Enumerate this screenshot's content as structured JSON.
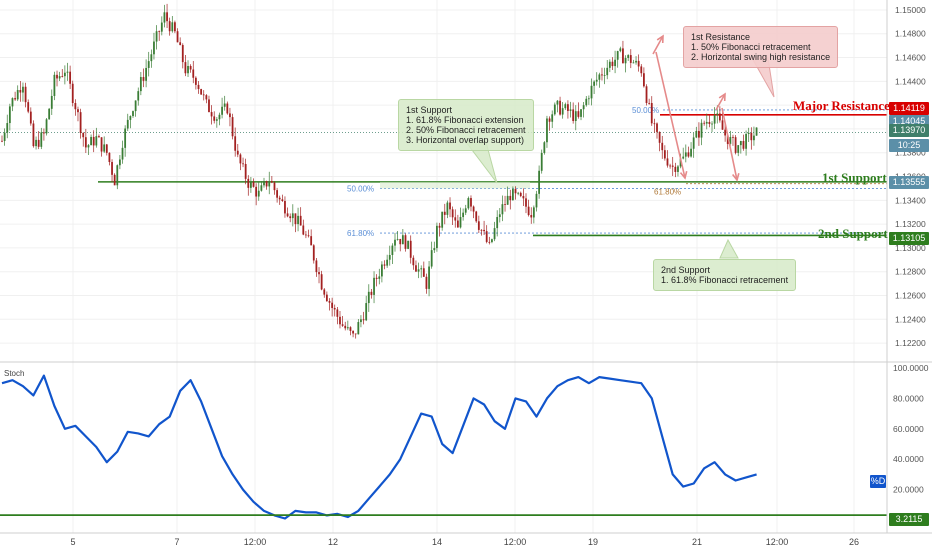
{
  "colors": {
    "candle_up": "#3a7d35",
    "candle_down": "#a32020",
    "support": "#2e7d1e",
    "resistance": "#d80000",
    "fib": "#5b8fd6",
    "fib_618_upper": "#b07a3a",
    "stoch_line": "#1155cc",
    "current_price": "#5b8fa8",
    "time_tag": "#5b8fa8",
    "grid": "#f0f0f0"
  },
  "price_axis": {
    "ticks": [
      "1.15000",
      "1.14800",
      "1.14600",
      "1.14400",
      "1.14200",
      "1.14000",
      "1.13800",
      "1.13600",
      "1.13400",
      "1.13200",
      "1.13000",
      "1.12800",
      "1.12600",
      "1.12400",
      "1.12200"
    ],
    "tags": {
      "major_resistance": "1.14119",
      "last_high": "1.14045",
      "current": "1.13970",
      "countdown": "10:25",
      "first_support": "1.13555",
      "second_support": "1.13105"
    }
  },
  "time_axis": {
    "ticks": [
      "5",
      "7",
      "12:00",
      "12",
      "14",
      "12:00",
      "19",
      "21",
      "12:00",
      "26"
    ]
  },
  "levels": {
    "major_resistance_label": "Major Resistance",
    "first_support_label": "1st Support",
    "second_support_label": "2nd Support"
  },
  "fib_labels": {
    "left_50": "50.00%",
    "left_618": "61.80%",
    "right_50": "50.00%",
    "right_618": "61.80%"
  },
  "annotations": {
    "first_support": [
      "1st Support",
      "1. 61.8% Fibonacci extension",
      "2. 50% Fibonacci retracement",
      "3. Horizontal overlap support)"
    ],
    "first_resistance": [
      "1st Resistance",
      "1. 50% Fibonacci retracement",
      "2. Horizontal swing high resistance"
    ],
    "second_support": [
      "2nd Support",
      "1. 61.8% Fibonacci retracement"
    ]
  },
  "stoch": {
    "name": "Stoch",
    "ticks": [
      "100.0000",
      "80.0000",
      "60.0000",
      "40.0000",
      "20.0000"
    ],
    "k_label": "%D",
    "level_value": "3.2115"
  },
  "chart_data": [
    {
      "type": "candlestick",
      "title": "",
      "ylim": [
        1.121,
        1.1505
      ],
      "x_ticks": [
        "5",
        "7",
        "12:00",
        "12",
        "14",
        "12:00",
        "19",
        "21",
        "12:00",
        "26"
      ],
      "close_path": [
        {
          "x": 0,
          "y": 1.139
        },
        {
          "x": 3,
          "y": 1.142
        },
        {
          "x": 8,
          "y": 1.144
        },
        {
          "x": 12,
          "y": 1.1385
        },
        {
          "x": 16,
          "y": 1.1395
        },
        {
          "x": 20,
          "y": 1.144
        },
        {
          "x": 24,
          "y": 1.145
        },
        {
          "x": 28,
          "y": 1.142
        },
        {
          "x": 32,
          "y": 1.1385
        },
        {
          "x": 36,
          "y": 1.1392
        },
        {
          "x": 40,
          "y": 1.138
        },
        {
          "x": 43,
          "y": 1.1357
        },
        {
          "x": 46,
          "y": 1.139
        },
        {
          "x": 50,
          "y": 1.142
        },
        {
          "x": 54,
          "y": 1.1445
        },
        {
          "x": 58,
          "y": 1.147
        },
        {
          "x": 62,
          "y": 1.1495
        },
        {
          "x": 66,
          "y": 1.148
        },
        {
          "x": 70,
          "y": 1.145
        },
        {
          "x": 74,
          "y": 1.1442
        },
        {
          "x": 78,
          "y": 1.142
        },
        {
          "x": 82,
          "y": 1.141
        },
        {
          "x": 86,
          "y": 1.1418
        },
        {
          "x": 90,
          "y": 1.1375
        },
        {
          "x": 94,
          "y": 1.1355
        },
        {
          "x": 98,
          "y": 1.1345
        },
        {
          "x": 102,
          "y": 1.1358
        },
        {
          "x": 106,
          "y": 1.134
        },
        {
          "x": 110,
          "y": 1.133
        },
        {
          "x": 114,
          "y": 1.1318
        },
        {
          "x": 118,
          "y": 1.13
        },
        {
          "x": 122,
          "y": 1.127
        },
        {
          "x": 126,
          "y": 1.125
        },
        {
          "x": 130,
          "y": 1.1235
        },
        {
          "x": 134,
          "y": 1.1225
        },
        {
          "x": 138,
          "y": 1.1245
        },
        {
          "x": 142,
          "y": 1.127
        },
        {
          "x": 146,
          "y": 1.129
        },
        {
          "x": 150,
          "y": 1.131
        },
        {
          "x": 154,
          "y": 1.1305
        },
        {
          "x": 158,
          "y": 1.1285
        },
        {
          "x": 162,
          "y": 1.127
        },
        {
          "x": 166,
          "y": 1.1315
        },
        {
          "x": 170,
          "y": 1.1335
        },
        {
          "x": 174,
          "y": 1.1315
        },
        {
          "x": 178,
          "y": 1.1345
        },
        {
          "x": 182,
          "y": 1.132
        },
        {
          "x": 186,
          "y": 1.13
        },
        {
          "x": 190,
          "y": 1.133
        },
        {
          "x": 194,
          "y": 1.1345
        },
        {
          "x": 198,
          "y": 1.134
        },
        {
          "x": 202,
          "y": 1.133
        },
        {
          "x": 205,
          "y": 1.136
        },
        {
          "x": 208,
          "y": 1.141
        },
        {
          "x": 212,
          "y": 1.1418
        },
        {
          "x": 216,
          "y": 1.1415
        },
        {
          "x": 220,
          "y": 1.1408
        },
        {
          "x": 224,
          "y": 1.143
        },
        {
          "x": 228,
          "y": 1.1445
        },
        {
          "x": 232,
          "y": 1.1455
        },
        {
          "x": 236,
          "y": 1.1462
        },
        {
          "x": 240,
          "y": 1.1458
        },
        {
          "x": 244,
          "y": 1.145
        },
        {
          "x": 248,
          "y": 1.1405
        },
        {
          "x": 252,
          "y": 1.138
        },
        {
          "x": 256,
          "y": 1.1368
        },
        {
          "x": 260,
          "y": 1.1375
        },
        {
          "x": 264,
          "y": 1.139
        },
        {
          "x": 268,
          "y": 1.1405
        },
        {
          "x": 272,
          "y": 1.1412
        },
        {
          "x": 276,
          "y": 1.1395
        },
        {
          "x": 280,
          "y": 1.1385
        },
        {
          "x": 284,
          "y": 1.139
        },
        {
          "x": 288,
          "y": 1.1397
        }
      ]
    },
    {
      "type": "line",
      "title": "Stoch",
      "ylim": [
        0,
        100
      ],
      "series": [
        {
          "name": "%D",
          "x": [
            0,
            4,
            8,
            12,
            16,
            20,
            24,
            28,
            32,
            36,
            40,
            44,
            48,
            52,
            56,
            60,
            64,
            68,
            72,
            76,
            80,
            84,
            88,
            92,
            96,
            100,
            104,
            108,
            112,
            116,
            120,
            124,
            128,
            132,
            136,
            140,
            144,
            148,
            152,
            156,
            160,
            164,
            168,
            172,
            176,
            180,
            184,
            188,
            192,
            196,
            200,
            204,
            208,
            212,
            216,
            220,
            224,
            228,
            232,
            236,
            240,
            244,
            248,
            252,
            256,
            260,
            264,
            268,
            272,
            276,
            280,
            284,
            288
          ],
          "values": [
            90,
            92,
            88,
            82,
            95,
            75,
            60,
            62,
            55,
            48,
            38,
            45,
            58,
            57,
            55,
            63,
            68,
            85,
            92,
            78,
            60,
            42,
            30,
            20,
            12,
            6,
            3,
            1,
            6,
            5,
            5,
            3,
            4,
            2,
            6,
            14,
            22,
            30,
            40,
            55,
            70,
            68,
            50,
            44,
            62,
            80,
            76,
            65,
            60,
            80,
            78,
            68,
            80,
            88,
            92,
            94,
            90,
            94,
            93,
            92,
            91,
            90,
            80,
            55,
            30,
            22,
            24,
            34,
            38,
            30,
            26,
            28,
            30
          ]
        }
      ],
      "annotations": [
        "3.2115"
      ]
    }
  ]
}
